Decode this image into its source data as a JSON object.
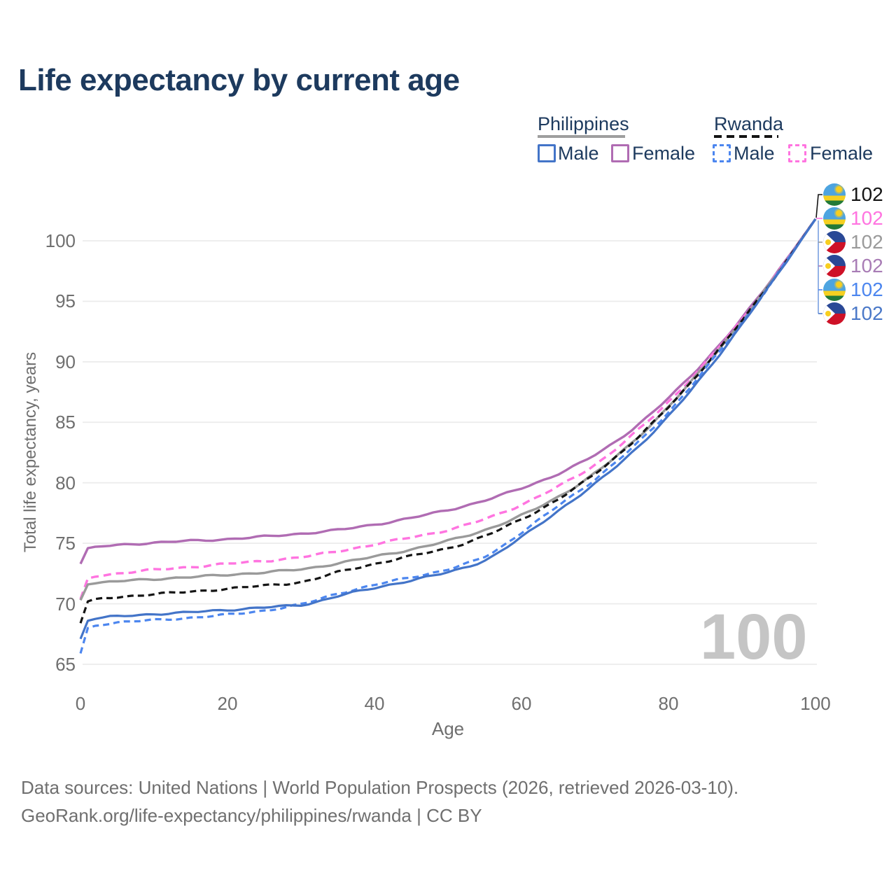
{
  "header": {
    "title": "Life expectancy by current age",
    "title_color": "#1d3a5e"
  },
  "legend": {
    "groups": [
      {
        "label": "Philippines",
        "line_style": "solid",
        "line_color": "#9e9e9e",
        "items": [
          {
            "label": "Male",
            "swatch_color": "#4374c8",
            "swatch_style": "solid"
          },
          {
            "label": "Female",
            "swatch_color": "#b06cb3",
            "swatch_style": "solid"
          }
        ]
      },
      {
        "label": "Rwanda",
        "line_style": "dashed",
        "line_color": "#141414",
        "items": [
          {
            "label": "Male",
            "swatch_color": "#4c86ef",
            "swatch_style": "dashed"
          },
          {
            "label": "Female",
            "swatch_color": "#ff74e0",
            "swatch_style": "dashed"
          }
        ]
      }
    ]
  },
  "chart_data": {
    "type": "line",
    "title": "Life expectancy by current age",
    "xlabel": "Age",
    "ylabel": "Total life expectancy, years",
    "xticks": [
      "0",
      "20",
      "40",
      "60",
      "80",
      "100"
    ],
    "xtick_values": [
      0,
      20,
      40,
      60,
      80,
      100
    ],
    "yticks": [
      "65",
      "70",
      "75",
      "80",
      "85",
      "90",
      "95",
      "100"
    ],
    "ytick_values": [
      65,
      70,
      75,
      80,
      85,
      90,
      95,
      100
    ],
    "xlim": [
      0,
      100
    ],
    "ylim": [
      63.5,
      103.5
    ],
    "grid": "horizontal",
    "age_cursor_watermark": "100",
    "control_ages": [
      0,
      1,
      3,
      5,
      10,
      15,
      20,
      25,
      30,
      35,
      40,
      45,
      50,
      55,
      60,
      65,
      70,
      75,
      80,
      85,
      90,
      95,
      100
    ],
    "series": [
      {
        "name": "Philippines Female",
        "country": "Philippines",
        "sex": "Female",
        "style": "solid",
        "color": "#b06cb3",
        "width": 3.4,
        "dash": "",
        "values": [
          73.3,
          74.6,
          74.75,
          74.85,
          75.05,
          75.2,
          75.35,
          75.55,
          75.8,
          76.1,
          76.55,
          77.1,
          77.75,
          78.55,
          79.55,
          80.75,
          82.3,
          84.4,
          87.0,
          90.1,
          93.6,
          97.6,
          101.8
        ]
      },
      {
        "name": "Rwanda Female",
        "country": "Rwanda",
        "sex": "Female",
        "style": "dashed",
        "color": "#ff74e0",
        "width": 3.4,
        "dash": "11 7",
        "values": [
          70.4,
          72.1,
          72.35,
          72.5,
          72.8,
          73.05,
          73.3,
          73.55,
          73.85,
          74.35,
          74.9,
          75.5,
          76.1,
          77.0,
          78.2,
          79.7,
          81.5,
          83.9,
          86.7,
          89.9,
          93.5,
          97.5,
          101.8
        ]
      },
      {
        "name": "Philippines Total",
        "country": "Philippines",
        "sex": "Total",
        "style": "solid",
        "color": "#9a9a9a",
        "width": 3.4,
        "dash": "",
        "values": [
          70.3,
          71.6,
          71.75,
          71.85,
          72.05,
          72.2,
          72.4,
          72.6,
          72.85,
          73.35,
          73.9,
          74.5,
          75.2,
          76.1,
          77.3,
          78.85,
          80.8,
          83.3,
          86.3,
          89.7,
          93.4,
          97.45,
          101.8
        ]
      },
      {
        "name": "Rwanda Total",
        "country": "Rwanda",
        "sex": "Total",
        "style": "dashed",
        "color": "#151515",
        "width": 3.2,
        "dash": "9 6",
        "values": [
          68.4,
          70.2,
          70.45,
          70.55,
          70.8,
          71.0,
          71.25,
          71.5,
          71.8,
          72.6,
          73.3,
          73.95,
          74.6,
          75.6,
          77.0,
          78.65,
          80.75,
          83.3,
          86.25,
          89.7,
          93.4,
          97.45,
          101.8
        ]
      },
      {
        "name": "Rwanda Male",
        "country": "Rwanda",
        "sex": "Male",
        "style": "dashed",
        "color": "#4c86ef",
        "width": 3.2,
        "dash": "9 6",
        "values": [
          65.9,
          68.0,
          68.3,
          68.45,
          68.65,
          68.85,
          69.1,
          69.45,
          69.95,
          70.85,
          71.55,
          72.2,
          72.85,
          73.9,
          75.9,
          78.1,
          80.3,
          82.85,
          85.85,
          89.4,
          93.2,
          97.4,
          101.8
        ]
      },
      {
        "name": "Philippines Male",
        "country": "Philippines",
        "sex": "Male",
        "style": "solid",
        "color": "#4374c8",
        "width": 3.2,
        "dash": "",
        "values": [
          67.1,
          68.6,
          68.85,
          68.95,
          69.15,
          69.3,
          69.5,
          69.7,
          69.9,
          70.65,
          71.3,
          71.95,
          72.6,
          73.6,
          75.5,
          77.7,
          79.9,
          82.5,
          85.5,
          89.1,
          93.1,
          97.35,
          101.8
        ]
      }
    ],
    "end_labels": [
      {
        "flag": "rw",
        "country": "Rwanda",
        "series": "Total",
        "value": "102",
        "color": "#141414"
      },
      {
        "flag": "rw",
        "country": "Rwanda",
        "series": "Female",
        "value": "102",
        "color": "#ff74e0"
      },
      {
        "flag": "ph",
        "country": "Philippines",
        "series": "Total",
        "value": "102",
        "color": "#9a9a9a"
      },
      {
        "flag": "ph",
        "country": "Philippines",
        "series": "Female",
        "value": "102",
        "color": "#a87cb5"
      },
      {
        "flag": "rw",
        "country": "Rwanda",
        "series": "Male",
        "value": "102",
        "color": "#4c86ef"
      },
      {
        "flag": "ph",
        "country": "Philippines",
        "series": "Male",
        "value": "102",
        "color": "#4a78c8"
      }
    ],
    "legend_position": "top-right"
  },
  "footer": {
    "line1": "Data sources: United Nations | World Population Prospects (2026, retrieved 2026-03-10).",
    "line2": "GeoRank.org/life-expectancy/philippines/rwanda | CC BY"
  }
}
